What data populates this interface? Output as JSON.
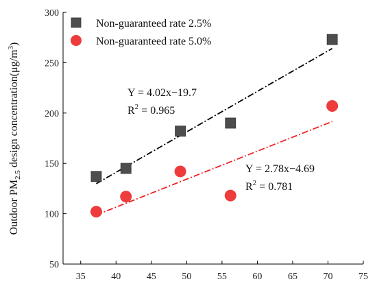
{
  "chart_data": {
    "type": "scatter",
    "xlim": [
      32.5,
      75
    ],
    "ylim": [
      50,
      300
    ],
    "xticks": [
      35,
      40,
      45,
      50,
      55,
      60,
      65,
      70,
      75
    ],
    "yticks": [
      50,
      100,
      150,
      200,
      250,
      300
    ],
    "ylabel": {
      "prefix": "Outdoor PM",
      "sub": "2.5",
      "middle": " design concentration(μg/m",
      "sup": "3",
      "suffix": ")"
    },
    "xlabel": "",
    "grid": false,
    "legend_position": "top-left",
    "series": [
      {
        "name": "Non-guaranteed rate 2.5%",
        "marker": "square",
        "color": "#4d4d4d",
        "x": [
          37.2,
          41.4,
          49.1,
          56.2,
          70.6
        ],
        "y": [
          137,
          145,
          182,
          190,
          273
        ],
        "fit": {
          "slope": 4.02,
          "intercept": -19.7,
          "x_range": [
            37.2,
            70.6
          ],
          "color": "#000000",
          "equation": "Y = 4.02x−19.7",
          "r2_label": "R",
          "r2_exp": "2",
          "r2_value": " = 0.965"
        }
      },
      {
        "name": "Non-guaranteed rate 5.0%",
        "marker": "circle",
        "color": "#ee3b3b",
        "x": [
          37.2,
          41.4,
          49.1,
          56.2,
          70.6
        ],
        "y": [
          102,
          117,
          142,
          118,
          207
        ],
        "fit": {
          "slope": 2.78,
          "intercept": -4.69,
          "x_range": [
            37.2,
            70.6
          ],
          "color": "#ee2222",
          "equation": "Y = 2.78x−4.69",
          "r2_label": "R",
          "r2_exp": "2",
          "r2_value": " = 0.781"
        }
      }
    ]
  }
}
